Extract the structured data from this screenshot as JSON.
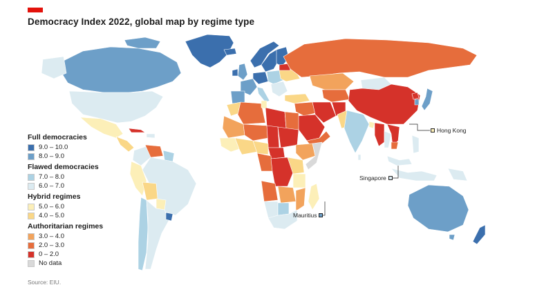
{
  "title": "Democracy Index 2022, global map by regime type",
  "source": "Source: EIU.",
  "colors": {
    "brand": "#e3120b",
    "c9_10": "#3b6fad",
    "c8_9": "#6d9fc8",
    "c7_8": "#acd2e4",
    "c6_7": "#dcebf1",
    "c5_6": "#fcefb8",
    "c4_5": "#fad787",
    "c3_4": "#f2a35c",
    "c2_3": "#e66d3c",
    "c0_2": "#d5322a",
    "nodata": "#d9d9d9"
  },
  "legend": [
    {
      "title": "Full democracies",
      "items": [
        {
          "label": "9.0 – 10.0",
          "color": "#3b6fad"
        },
        {
          "label": "8.0 – 9.0",
          "color": "#6d9fc8"
        }
      ]
    },
    {
      "title": "Flawed democracies",
      "items": [
        {
          "label": "7.0 – 8.0",
          "color": "#acd2e4"
        },
        {
          "label": "6.0 – 7.0",
          "color": "#dcebf1"
        }
      ]
    },
    {
      "title": "Hybrid regimes",
      "items": [
        {
          "label": "5.0 – 6.0",
          "color": "#fcefb8"
        },
        {
          "label": "4.0 – 5.0",
          "color": "#fad787"
        }
      ]
    },
    {
      "title": "Authoritarian regimes",
      "items": [
        {
          "label": "3.0 – 4.0",
          "color": "#f2a35c"
        },
        {
          "label": "2.0 – 3.0",
          "color": "#e66d3c"
        },
        {
          "label": "0 – 2.0",
          "color": "#d5322a"
        },
        {
          "label": "No data",
          "color": "#d9d9d9"
        }
      ]
    }
  ],
  "callouts": {
    "hong_kong": {
      "label": "Hong Kong",
      "color": "#fcefb8"
    },
    "singapore": {
      "label": "Singapore",
      "color": "#dcebf1"
    },
    "mauritius": {
      "label": "Mauritius",
      "color": "#6d9fc8"
    }
  }
}
